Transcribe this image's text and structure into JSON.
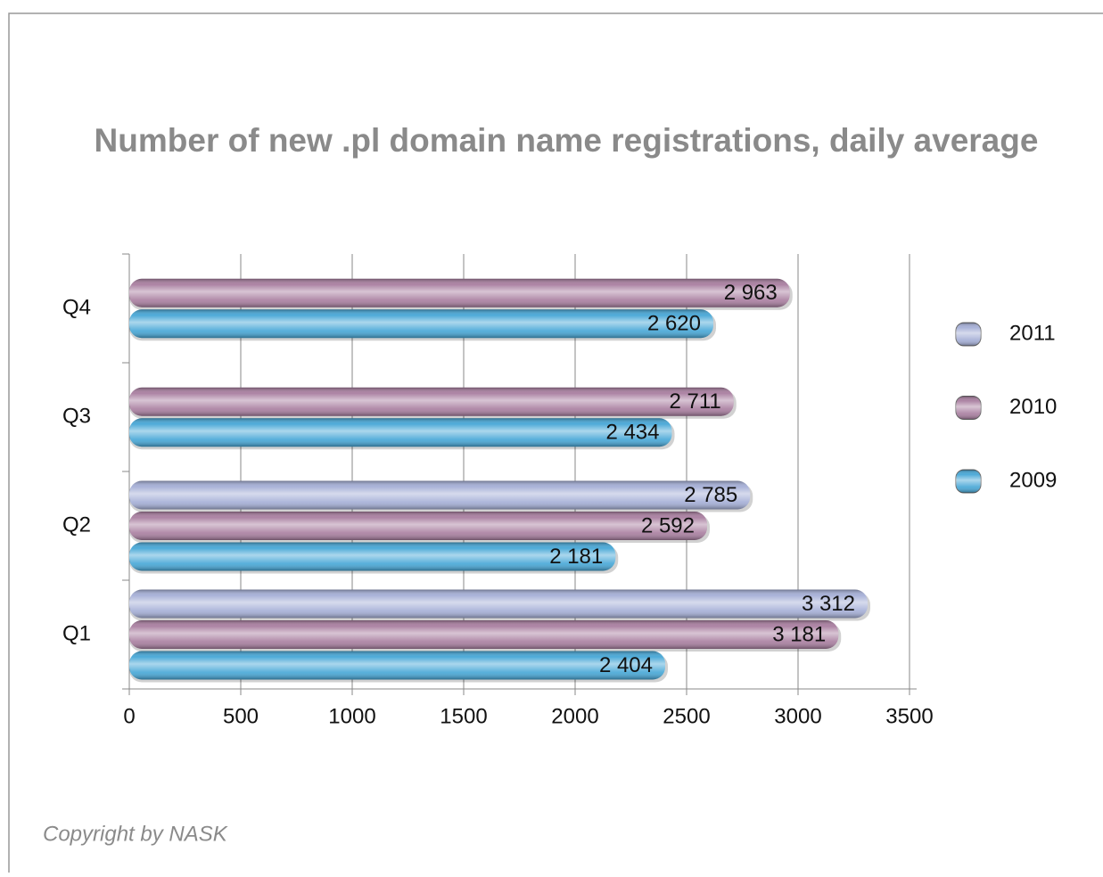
{
  "chart_data": {
    "type": "bar",
    "orientation": "horizontal",
    "title": "Number of new .pl domain name registrations, daily average",
    "categories": [
      "Q1",
      "Q2",
      "Q3",
      "Q4"
    ],
    "series": [
      {
        "name": "2011",
        "color": "#a4aed6",
        "values": [
          3312,
          2785,
          null,
          null
        ],
        "value_labels": [
          "3 312",
          "2 785",
          null,
          null
        ]
      },
      {
        "name": "2010",
        "color": "#a87d9f",
        "values": [
          3181,
          2592,
          2711,
          2963
        ],
        "value_labels": [
          "3 181",
          "2 592",
          "2 711",
          "2 963"
        ]
      },
      {
        "name": "2009",
        "color": "#45a6d6",
        "values": [
          2404,
          2181,
          2434,
          2620
        ],
        "value_labels": [
          "2 404",
          "2 181",
          "2 434",
          "2 620"
        ]
      }
    ],
    "xlim": [
      0,
      3500
    ],
    "xticks": [
      0,
      500,
      1000,
      1500,
      2000,
      2500,
      3000,
      3500
    ],
    "grid": true,
    "legend": "right",
    "footer": "Copyright by NASK"
  }
}
